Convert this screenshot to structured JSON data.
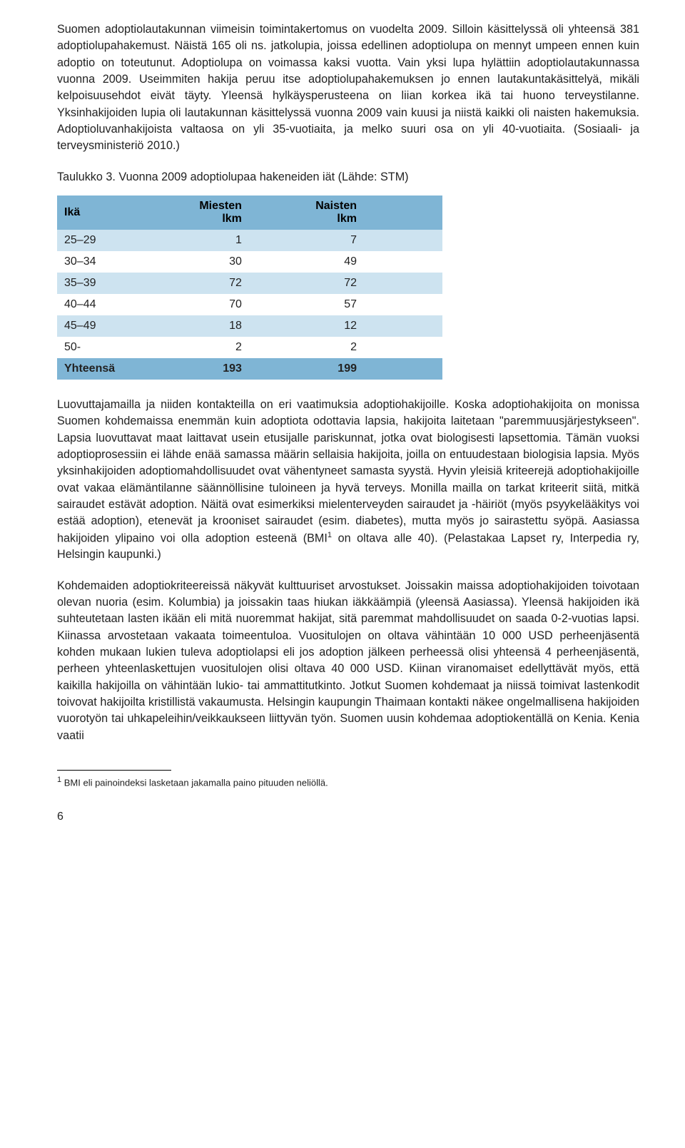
{
  "paragraphs": {
    "p1": "Suomen adoptiolautakunnan viimeisin toimintakertomus on vuodelta 2009. Silloin käsittelyssä oli yhteensä 381 adoptiolupahakemust. Näistä 165 oli ns. jatkolupia, joissa edellinen adoptiolupa on mennyt umpeen ennen kuin adoptio on toteutunut. Adoptiolupa on voimassa kaksi vuotta. Vain yksi lupa hylättiin adoptiolautakunnassa vuonna 2009. Useimmiten hakija peruu itse adoptiolupahakemuksen jo ennen lautakuntakäsittelyä, mikäli kelpoisuusehdot eivät täyty. Yleensä hylkäysperusteena on liian korkea ikä tai huono terveystilanne. Yksinhakijoiden lupia oli lautakunnan käsittelyssä vuonna 2009 vain kuusi ja niistä kaikki oli naisten hakemuksia. Adoptioluvanhakijoista valtaosa on yli 35-vuotiaita, ja melko suuri osa on yli 40-vuotiaita. (Sosiaali- ja terveysministeriö 2010.)",
    "caption": "Taulukko 3. Vuonna 2009 adoptiolupaa hakeneiden iät (Lähde: STM)",
    "p2_a": "Luovuttajamailla ja niiden kontakteilla on eri vaatimuksia adoptiohakijoille. Koska adoptiohakijoita on monissa Suomen kohdemaissa enemmän kuin adoptiota odottavia lapsia, hakijoita laitetaan \"paremmuusjärjestykseen\". Lapsia luovuttavat maat laittavat usein etusijalle pariskunnat, jotka ovat biologisesti lapsettomia. Tämän vuoksi adoptioprosessiin ei lähde enää samassa määrin sellaisia hakijoita, joilla on entuudestaan biologisia lapsia. Myös yksinhakijoiden adoptiomahdollisuudet ovat vähentyneet samasta syystä. Hyvin yleisiä kriteerejä adoptiohakijoille ovat vakaa elämäntilanne säännöllisine tuloineen ja hyvä terveys. Monilla mailla on tarkat kriteerit siitä, mitkä sairaudet estävät adoption. Näitä ovat esimerkiksi mielenterveyden sairaudet ja -häiriöt (myös psyykelääkitys voi estää adoption), etenevät ja krooniset sairaudet (esim. diabetes), mutta myös jo sairastettu syöpä. Aasiassa hakijoiden ylipaino voi olla adoption esteenä (BMI",
    "p2_sup": "1",
    "p2_b": " on oltava alle 40). (Pelastakaa Lapset ry, Interpedia ry, Helsingin kaupunki.)",
    "p3": "Kohdemaiden adoptiokriteereissä näkyvät kulttuuriset arvostukset. Joissakin maissa adoptiohakijoiden toivotaan olevan nuoria (esim. Kolumbia) ja joissakin taas hiukan iäkkäämpiä (yleensä Aasiassa). Yleensä hakijoiden ikä suhteutetaan lasten ikään eli mitä nuoremmat hakijat, sitä paremmat mahdollisuudet on saada 0-2-vuotias lapsi. Kiinassa arvostetaan vakaata toimeentuloa. Vuositulojen on oltava vähintään 10 000 USD perheenjäsentä kohden mukaan lukien tuleva adoptiolapsi eli jos adoption jälkeen perheessä olisi yhteensä 4 perheenjäsentä, perheen yhteenlaskettujen vuositulojen olisi oltava 40 000 USD. Kiinan viranomaiset edellyttävät myös, että kaikilla hakijoilla on vähintään lukio- tai ammattitutkinto. Jotkut Suomen kohdemaat ja niissä toimivat lastenkodit toivovat hakijoilta kristillistä vakaumusta. Helsingin kaupungin Thaimaan kontakti näkee ongelmallisena hakijoiden vuorotyön tai uhkapeleihin/veikkaukseen liittyvän työn. Suomen uusin kohdemaa adoptiokentällä on Kenia. Kenia vaatii"
  },
  "table": {
    "headers": {
      "age": "Ikä",
      "men": "Miesten lkm",
      "women": "Naisten lkm"
    },
    "rows": [
      {
        "age": "25–29",
        "men": "1",
        "women": "7"
      },
      {
        "age": "30–34",
        "men": "30",
        "women": "49"
      },
      {
        "age": "35–39",
        "men": "72",
        "women": "72"
      },
      {
        "age": "40–44",
        "men": "70",
        "women": "57"
      },
      {
        "age": "45–49",
        "men": "18",
        "women": "12"
      },
      {
        "age": "50-",
        "men": "2",
        "women": "2"
      }
    ],
    "total": {
      "age": "Yhteensä",
      "men": "193",
      "women": "199"
    }
  },
  "footnote": {
    "marker": "1",
    "text": " BMI eli painoindeksi lasketaan jakamalla paino pituuden neliöllä."
  },
  "page_number": "6",
  "colors": {
    "header_bg": "#7fb5d5",
    "row_even_bg": "#cde3f0",
    "row_odd_bg": "#ffffff"
  }
}
